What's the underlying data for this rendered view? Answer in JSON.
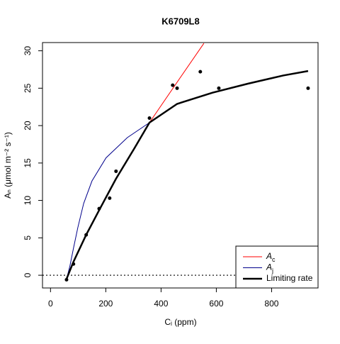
{
  "chart_data": {
    "type": "line",
    "title": "K6709L8",
    "x_label": "Cᵢ (ppm)",
    "y_label": "Aₙ (μmol m⁻² s⁻¹)",
    "xlim": [
      -29,
      968
    ],
    "ylim": [
      -1.7,
      31.1
    ],
    "xticks": [
      0,
      200,
      400,
      600,
      800
    ],
    "yticks": [
      0,
      5,
      10,
      15,
      20,
      25,
      30
    ],
    "reference_line": 0,
    "legend": "bottomright",
    "points": {
      "color": "#000000",
      "x": [
        58,
        83,
        129,
        176,
        214,
        237,
        358,
        442,
        458,
        542,
        609,
        932
      ],
      "values": [
        -0.6,
        1.5,
        5.4,
        8.9,
        10.3,
        13.9,
        21.0,
        25.4,
        25.0,
        27.2,
        25.0,
        25.0
      ]
    },
    "series": [
      {
        "name": "Aj",
        "color": "#00008b",
        "line_width": 1,
        "x": [
          58,
          70,
          83,
          99,
          120,
          150,
          201,
          278,
          358
        ],
        "values": [
          -0.5,
          1.2,
          3.6,
          6.4,
          9.6,
          12.6,
          15.7,
          18.4,
          20.4
        ]
      },
      {
        "name": "Ac",
        "color": "#ff0000",
        "line_width": 1,
        "x": [
          58,
          83,
          129,
          176,
          237,
          304,
          358,
          458,
          555
        ],
        "values": [
          -0.5,
          1.8,
          5.4,
          8.7,
          12.9,
          17.0,
          20.4,
          25.8,
          31.0
        ]
      },
      {
        "name": "Limiting rate",
        "color": "#000000",
        "line_width": 2.5,
        "x": [
          58,
          83,
          129,
          176,
          237,
          304,
          358,
          458,
          586,
          714,
          842,
          932
        ],
        "values": [
          -0.5,
          1.8,
          5.4,
          8.7,
          12.9,
          17.0,
          20.4,
          22.9,
          24.4,
          25.6,
          26.7,
          27.3
        ]
      }
    ]
  }
}
